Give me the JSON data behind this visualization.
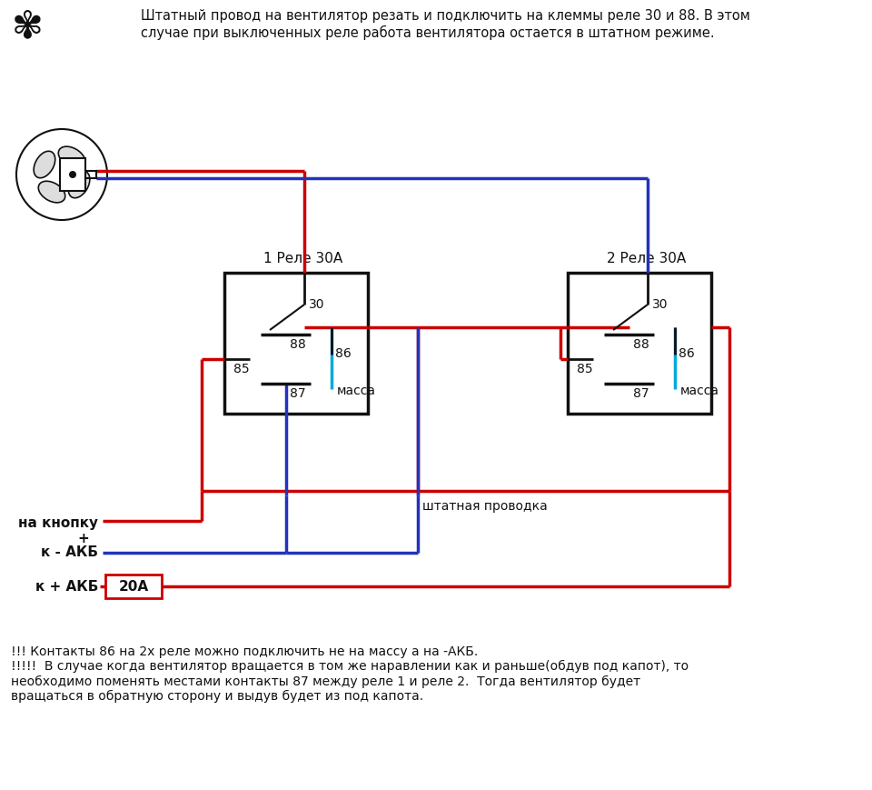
{
  "bg_color": "#ffffff",
  "title_text": "Штатный провод на вентилятор резать и подключить на клеммы реле 30 и 88. В этом\nслучае при выключенных реле работа вентилятора остается в штатном режиме.",
  "bottom_text": "!!! Контакты 86 на 2х реле можно подключить не на массу а на -АКБ.\n!!!!!  В случае когда вентилятор вращается в том же наравлении как и раньше(обдув под капот), то\nнеобходимо поменять местами контакты 87 между реле 1 и реле 2.  Тогда вентилятор будет\nвращаться в обратную сторону и выдув будет из под капота.",
  "relay1_label": "1 Реле 30А",
  "relay2_label": "2 Реле 30А",
  "red": "#cc0000",
  "blue": "#2233bb",
  "cyan": "#00aadd",
  "black": "#111111",
  "fuse_label": "20А",
  "massa_label": "масса",
  "shtprov_label": "штатная проводка",
  "na_knopku": "на кнопку",
  "plus": "+",
  "k_akb_minus": "к - АКБ",
  "k_akb_plus": "к + АКБ",
  "fan_icon": "✾"
}
